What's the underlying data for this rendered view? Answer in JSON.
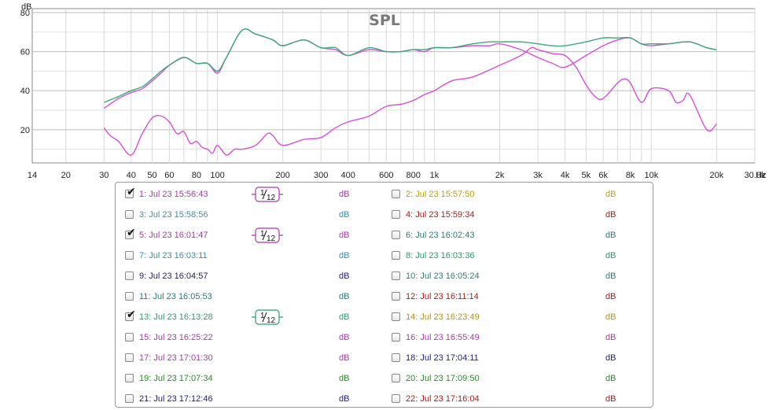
{
  "chart_data": {
    "type": "line",
    "title": "SPL",
    "ylabel": "dB",
    "xunit": "Hz",
    "xscale": "log",
    "xlim": [
      14,
      30000
    ],
    "ylim": [
      3,
      82
    ],
    "grid": true,
    "yticks": [
      20,
      40,
      60,
      80
    ],
    "ytick_labels": [
      "20",
      "40",
      "60",
      "80"
    ],
    "xticks": [
      14,
      20,
      30,
      40,
      50,
      60,
      80,
      100,
      200,
      300,
      400,
      600,
      800,
      1000,
      2000,
      3000,
      4000,
      5000,
      6000,
      8000,
      10000,
      20000,
      30000
    ],
    "xtick_labels": [
      "14",
      "20",
      "30",
      "40",
      "50",
      "60",
      "80",
      "100",
      "200",
      "300",
      "400",
      "600",
      "800",
      "1k",
      "2k",
      "3k",
      "4k",
      "5k",
      "6k",
      "8k",
      "10k",
      "20k",
      "30.0k"
    ],
    "series": [
      {
        "name": "1: Jul 23 15:56:43",
        "color": "#d64fd6",
        "x": [
          30,
          35,
          40,
          45,
          50,
          55,
          60,
          70,
          80,
          90,
          100,
          110,
          130,
          150,
          180,
          200,
          250,
          300,
          350,
          400,
          500,
          600,
          700,
          800,
          900,
          1000,
          1200,
          1500,
          1800,
          2000,
          2500,
          3000,
          3500,
          4000,
          5000,
          6000,
          7000,
          8000,
          9000,
          10000,
          12000,
          15000,
          18000,
          20000
        ],
        "y": [
          31,
          36,
          39,
          41,
          45,
          49,
          53,
          57,
          54,
          54,
          49,
          57,
          71,
          69,
          66,
          63,
          66,
          62,
          61,
          58,
          61,
          60,
          60,
          61,
          60,
          62,
          62,
          63,
          63,
          64,
          61,
          57,
          54,
          52,
          58,
          63,
          66,
          67,
          64,
          63,
          64,
          65,
          62,
          61
        ]
      },
      {
        "name": "5: Jul 23 16:01:47",
        "color": "#d64fd6",
        "x": [
          30,
          32,
          35,
          40,
          45,
          50,
          55,
          60,
          65,
          70,
          75,
          80,
          85,
          90,
          95,
          100,
          110,
          120,
          130,
          150,
          170,
          180,
          200,
          250,
          300,
          350,
          400,
          500,
          600,
          700,
          800,
          900,
          1000,
          1200,
          1500,
          2000,
          2500,
          2800,
          3000,
          3500,
          4000,
          4500,
          5000,
          5500,
          6000,
          7000,
          7500,
          8000,
          9000,
          10000,
          12000,
          13000,
          14000,
          15000,
          18000,
          20000
        ],
        "y": [
          21,
          17,
          14,
          7,
          18,
          26,
          27,
          24,
          18,
          19,
          13,
          14,
          11,
          10,
          8,
          12,
          7,
          10,
          10,
          12,
          18,
          17,
          12,
          15,
          16,
          21,
          24,
          27,
          32,
          33,
          35,
          38,
          40,
          45,
          47,
          53,
          58,
          62,
          61,
          59,
          58,
          52,
          43,
          37,
          36,
          44,
          46,
          44,
          34,
          41,
          40,
          34,
          35,
          38,
          20,
          23
        ]
      },
      {
        "name": "13: Jul 23 16:13:28",
        "color": "#3aa87a",
        "x": [
          30,
          35,
          40,
          45,
          50,
          55,
          60,
          70,
          80,
          90,
          100,
          110,
          130,
          150,
          180,
          200,
          250,
          300,
          350,
          400,
          500,
          600,
          700,
          800,
          900,
          1000,
          1200,
          1500,
          1800,
          2000,
          2500,
          3000,
          3500,
          4000,
          5000,
          6000,
          7000,
          8000,
          9000,
          10000,
          12000,
          15000,
          18000,
          20000
        ],
        "y": [
          34,
          37,
          40,
          42,
          46,
          50,
          53,
          57,
          54,
          54,
          50,
          57,
          71,
          69,
          66,
          63,
          66,
          62,
          62,
          58,
          62,
          60,
          60,
          61,
          61,
          62,
          62,
          64,
          65,
          65,
          65,
          64,
          63,
          63,
          65,
          67,
          67,
          67,
          64,
          64,
          64,
          65,
          62,
          61
        ]
      }
    ]
  },
  "legend": {
    "db_unit": "dB",
    "smoothing_label": "1/12",
    "items": [
      {
        "label": "1: Jul 23 15:56:43",
        "color": "#a83aa8",
        "checked": true,
        "smoothing": true,
        "smooth_color": "#a83aa8"
      },
      {
        "label": "2: Jul 23 15:57:50",
        "color": "#b8a010",
        "checked": false,
        "smoothing": false
      },
      {
        "label": "3: Jul 23 15:58:56",
        "color": "#3a8fa8",
        "checked": false,
        "smoothing": false
      },
      {
        "label": "4: Jul 23 15:59:34",
        "color": "#a01c1c",
        "checked": false,
        "smoothing": false
      },
      {
        "label": "5: Jul 23 16:01:47",
        "color": "#a83aa8",
        "checked": true,
        "smoothing": true,
        "smooth_color": "#a83aa8"
      },
      {
        "label": "6: Jul 23 16:02:43",
        "color": "#2a7a7a",
        "checked": false,
        "smoothing": false
      },
      {
        "label": "7: Jul 23 16:03:11",
        "color": "#3a8fa8",
        "checked": false,
        "smoothing": false
      },
      {
        "label": "8: Jul 23 16:03:36",
        "color": "#2a9a6a",
        "checked": false,
        "smoothing": false
      },
      {
        "label": "9: Jul 23 16:04:57",
        "color": "#1c1c7a",
        "checked": false,
        "smoothing": false
      },
      {
        "label": "10: Jul 23 16:05:24",
        "color": "#2a7a7a",
        "checked": false,
        "smoothing": false
      },
      {
        "label": "11: Jul 23 16:05:53",
        "color": "#2a7a7a",
        "checked": false,
        "smoothing": false
      },
      {
        "label": "12: Jul 23 16:11:14",
        "color": "#a01c1c",
        "checked": false,
        "smoothing": false
      },
      {
        "label": "13: Jul 23 16:13:28",
        "color": "#2a9a6a",
        "checked": true,
        "smoothing": true,
        "smooth_color": "#2a9a6a"
      },
      {
        "label": "14: Jul 23 16:23:49",
        "color": "#b89010",
        "checked": false,
        "smoothing": false
      },
      {
        "label": "15: Jul 23 16:25:22",
        "color": "#a83aa8",
        "checked": false,
        "smoothing": false
      },
      {
        "label": "16: Jul 23 16:55:49",
        "color": "#a83aa8",
        "checked": false,
        "smoothing": false
      },
      {
        "label": "17: Jul 23 17:01:30",
        "color": "#a83aa8",
        "checked": false,
        "smoothing": false
      },
      {
        "label": "18: Jul 23 17:04:11",
        "color": "#1c1c7a",
        "checked": false,
        "smoothing": false
      },
      {
        "label": "19: Jul 23 17:07:34",
        "color": "#2a8a2a",
        "checked": false,
        "smoothing": false
      },
      {
        "label": "20: Jul 23 17:09:50",
        "color": "#2a8a2a",
        "checked": false,
        "smoothing": false
      },
      {
        "label": "21: Jul 23 17:12:46",
        "color": "#1c1c7a",
        "checked": false,
        "smoothing": false
      },
      {
        "label": "22: Jul 23 17:16:04",
        "color": "#a01c1c",
        "checked": false,
        "smoothing": false
      }
    ]
  }
}
